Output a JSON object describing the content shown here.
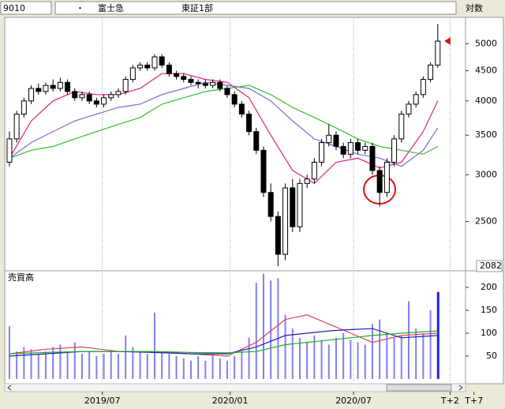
{
  "header": {
    "code": "9010",
    "dot": "・",
    "name": "富士急",
    "market": "東証1部",
    "scale": "対数"
  },
  "chart_data": [
    {
      "type": "candlestick",
      "log_scale": true,
      "ylim": [
        2082,
        5540
      ],
      "yticks": [
        2500,
        3000,
        3500,
        4000,
        4500,
        5000
      ],
      "xlim": [
        -0.43,
        62.83
      ],
      "up_color": "#ffffff",
      "down_color": "#000000",
      "ohlc": [
        [
          3150,
          3550,
          3100,
          3450
        ],
        [
          3450,
          3850,
          3400,
          3800
        ],
        [
          3800,
          4050,
          3750,
          4000
        ],
        [
          4000,
          4250,
          3950,
          4200
        ],
        [
          4200,
          4280,
          4100,
          4150
        ],
        [
          4150,
          4300,
          4100,
          4250
        ],
        [
          4250,
          4350,
          4150,
          4200
        ],
        [
          4200,
          4380,
          4150,
          4300
        ],
        [
          4300,
          4350,
          4100,
          4150
        ],
        [
          4150,
          4200,
          4000,
          4050
        ],
        [
          4050,
          4150,
          4000,
          4100
        ],
        [
          4100,
          4150,
          3950,
          4000
        ],
        [
          4000,
          4050,
          3900,
          3950
        ],
        [
          3950,
          4100,
          3900,
          4050
        ],
        [
          4050,
          4150,
          4000,
          4100
        ],
        [
          4100,
          4200,
          4050,
          4150
        ],
        [
          4150,
          4400,
          4100,
          4350
        ],
        [
          4350,
          4600,
          4300,
          4550
        ],
        [
          4550,
          4650,
          4500,
          4600
        ],
        [
          4600,
          4650,
          4500,
          4550
        ],
        [
          4550,
          4800,
          4500,
          4750
        ],
        [
          4750,
          4800,
          4550,
          4600
        ],
        [
          4600,
          4650,
          4400,
          4450
        ],
        [
          4450,
          4500,
          4350,
          4400
        ],
        [
          4400,
          4450,
          4300,
          4350
        ],
        [
          4350,
          4400,
          4250,
          4300
        ],
        [
          4300,
          4350,
          4200,
          4280
        ],
        [
          4280,
          4350,
          4200,
          4250
        ],
        [
          4250,
          4350,
          4200,
          4300
        ],
        [
          4300,
          4350,
          4150,
          4200
        ],
        [
          4200,
          4250,
          4050,
          4100
        ],
        [
          4100,
          4150,
          3900,
          3950
        ],
        [
          3950,
          4000,
          3750,
          3800
        ],
        [
          3800,
          3850,
          3500,
          3550
        ],
        [
          3550,
          3600,
          3250,
          3300
        ],
        [
          3300,
          3350,
          2750,
          2800
        ],
        [
          2800,
          2900,
          2500,
          2550
        ],
        [
          2550,
          2600,
          2100,
          2200
        ],
        [
          2200,
          2900,
          2150,
          2850
        ],
        [
          2850,
          2950,
          2400,
          2450
        ],
        [
          2450,
          2950,
          2400,
          2900
        ],
        [
          2900,
          3000,
          2850,
          2950
        ],
        [
          2950,
          3200,
          2900,
          3150
        ],
        [
          3150,
          3450,
          3100,
          3400
        ],
        [
          3400,
          3650,
          3350,
          3500
        ],
        [
          3500,
          3550,
          3300,
          3350
        ],
        [
          3350,
          3400,
          3200,
          3250
        ],
        [
          3250,
          3450,
          3200,
          3400
        ],
        [
          3400,
          3450,
          3250,
          3300
        ],
        [
          3300,
          3400,
          3250,
          3350
        ],
        [
          3350,
          3400,
          3000,
          3050
        ],
        [
          3050,
          3100,
          2650,
          2800
        ],
        [
          2800,
          3200,
          2750,
          3150
        ],
        [
          3150,
          3500,
          3100,
          3450
        ],
        [
          3450,
          3850,
          3400,
          3800
        ],
        [
          3800,
          4000,
          3750,
          3950
        ],
        [
          3950,
          4150,
          3900,
          4100
        ],
        [
          4100,
          4400,
          4050,
          4350
        ],
        [
          4350,
          4650,
          4300,
          4600
        ],
        [
          4600,
          5400,
          4550,
          5050
        ]
      ],
      "lines": [
        {
          "color": "#e0207a",
          "x": [
            0,
            3,
            6,
            9,
            12,
            15,
            18,
            21,
            24,
            27,
            30,
            33,
            36,
            39,
            42,
            45,
            48,
            51,
            54,
            57,
            59
          ],
          "values": [
            3200,
            3700,
            4000,
            4150,
            4100,
            4100,
            4200,
            4450,
            4450,
            4350,
            4300,
            4050,
            3500,
            3050,
            2900,
            3150,
            3200,
            3080,
            3150,
            3550,
            4000
          ]
        },
        {
          "color": "#7070d0",
          "x": [
            0,
            3,
            6,
            9,
            12,
            15,
            18,
            21,
            24,
            27,
            30,
            33,
            36,
            39,
            42,
            45,
            48,
            51,
            54,
            57,
            59
          ],
          "values": [
            3200,
            3400,
            3550,
            3700,
            3800,
            3900,
            3950,
            4100,
            4200,
            4300,
            4250,
            4200,
            4000,
            3700,
            3450,
            3350,
            3250,
            3200,
            3100,
            3300,
            3600
          ]
        },
        {
          "color": "#30c030",
          "x": [
            0,
            3,
            6,
            9,
            12,
            15,
            18,
            21,
            24,
            27,
            30,
            33,
            36,
            39,
            42,
            45,
            48,
            51,
            54,
            57,
            59
          ],
          "values": [
            3200,
            3300,
            3350,
            3450,
            3550,
            3650,
            3750,
            3950,
            4050,
            4150,
            4200,
            4250,
            4100,
            3900,
            3750,
            3600,
            3450,
            3350,
            3300,
            3250,
            3350
          ]
        }
      ]
    },
    {
      "type": "bar",
      "title": "売買高",
      "ylim": [
        0,
        231
      ],
      "yticks": [
        50,
        100,
        150,
        200
      ],
      "xlim": [
        -0.43,
        62.83
      ],
      "xticks": [
        {
          "value": 12.8,
          "label": "2019/07"
        },
        {
          "value": 30.4,
          "label": "2020/01"
        },
        {
          "value": 47.4,
          "label": "2020/07"
        },
        {
          "value": 60.7,
          "label": "T+2"
        },
        {
          "value": 64,
          "label": "T+7"
        }
      ],
      "color": "#8080f0",
      "last_color": "#2020e0",
      "values": [
        115,
        60,
        70,
        65,
        55,
        60,
        70,
        75,
        60,
        80,
        55,
        60,
        50,
        55,
        60,
        55,
        95,
        70,
        60,
        55,
        145,
        60,
        55,
        50,
        45,
        40,
        50,
        40,
        55,
        45,
        40,
        50,
        60,
        90,
        210,
        230,
        215,
        220,
        140,
        110,
        90,
        80,
        95,
        85,
        75,
        90,
        100,
        85,
        80,
        75,
        120,
        130,
        100,
        90,
        95,
        170,
        110,
        100,
        150,
        190
      ],
      "lines": [
        {
          "color": "#e04060",
          "x": [
            0,
            5,
            10,
            15,
            20,
            25,
            30,
            34,
            38,
            41,
            44,
            47,
            50,
            54,
            59
          ],
          "values": [
            55,
            65,
            70,
            60,
            60,
            55,
            50,
            80,
            130,
            140,
            120,
            100,
            80,
            95,
            100
          ]
        },
        {
          "color": "#2020c0",
          "x": [
            0,
            5,
            10,
            15,
            20,
            25,
            30,
            34,
            38,
            41,
            44,
            47,
            50,
            54,
            59
          ],
          "values": [
            50,
            55,
            60,
            60,
            58,
            55,
            55,
            70,
            95,
            100,
            105,
            108,
            110,
            90,
            95
          ]
        },
        {
          "color": "#20b020",
          "x": [
            0,
            5,
            10,
            15,
            20,
            25,
            30,
            34,
            38,
            41,
            44,
            47,
            50,
            54,
            59
          ],
          "values": [
            55,
            58,
            60,
            60,
            60,
            58,
            57,
            60,
            75,
            80,
            85,
            90,
            95,
            100,
            105
          ]
        }
      ]
    }
  ]
}
